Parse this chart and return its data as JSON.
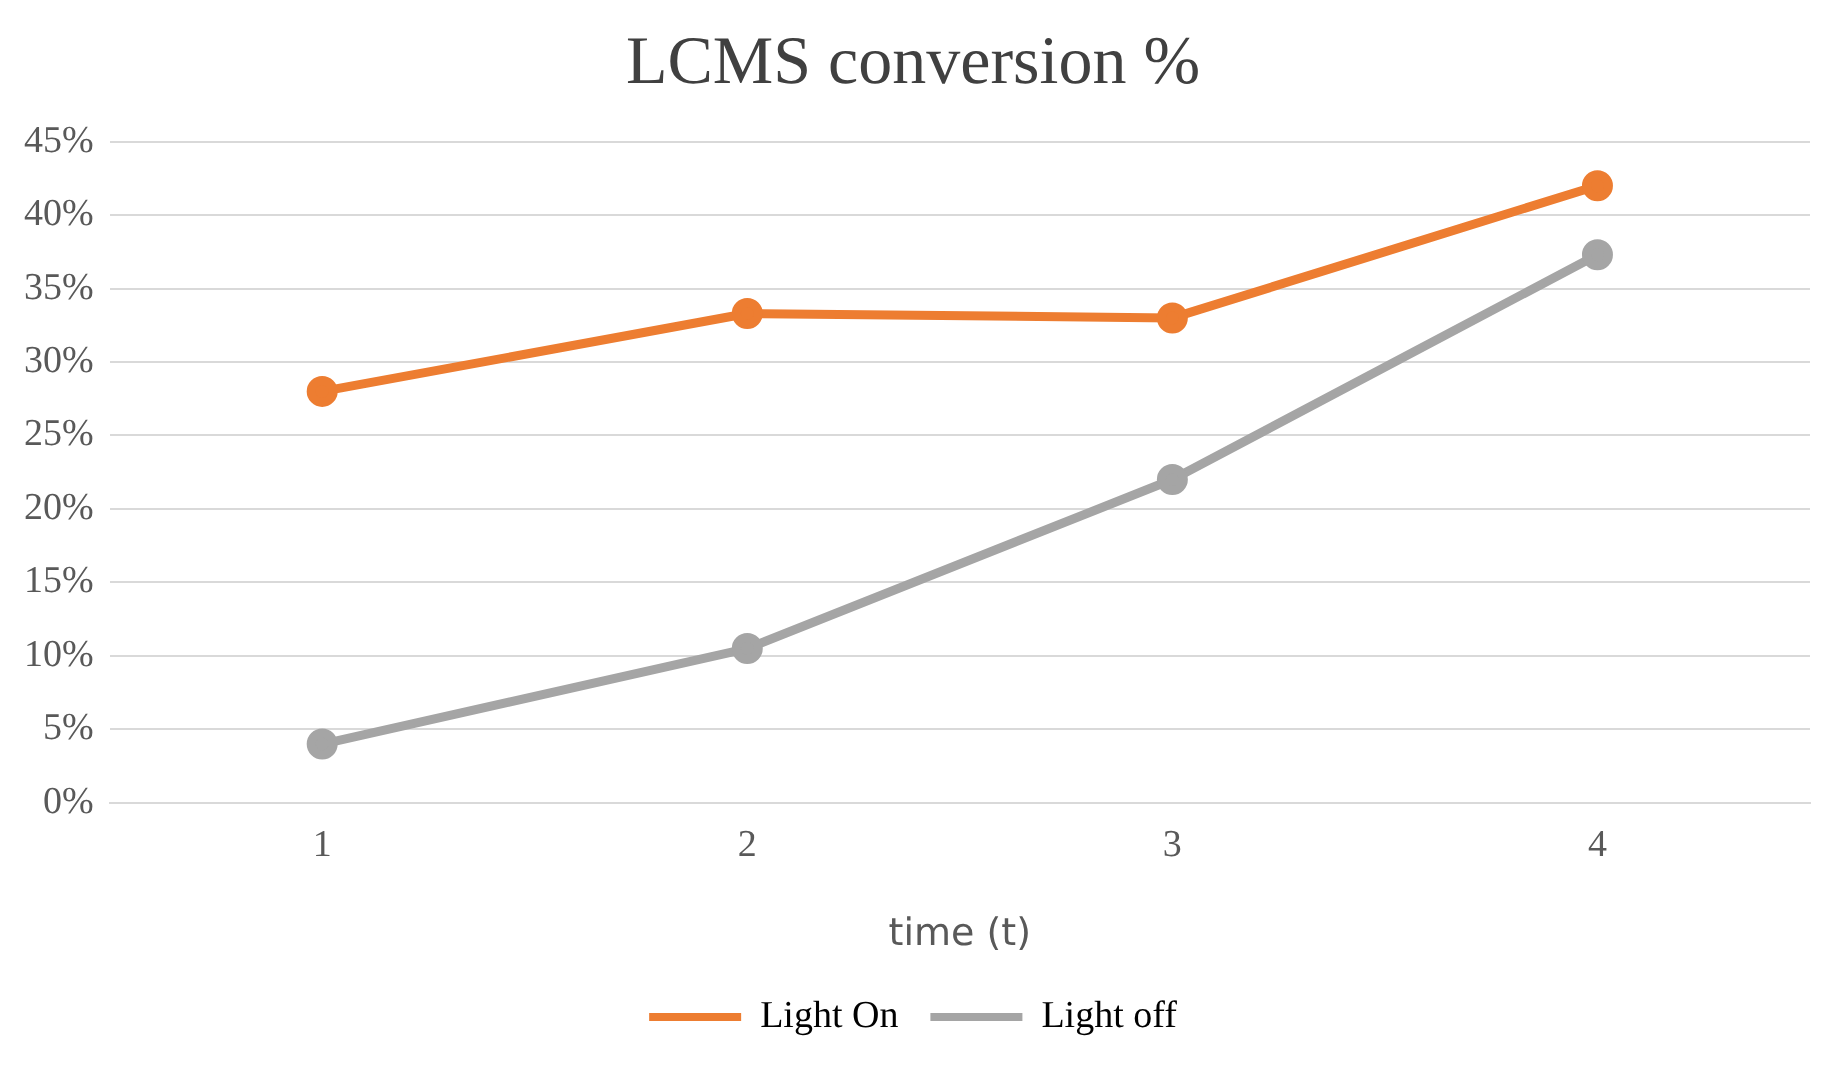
{
  "chart_data": {
    "type": "line",
    "title": "LCMS conversion %",
    "xlabel": "time (t)",
    "categories": [
      "1",
      "2",
      "3",
      "4"
    ],
    "series": [
      {
        "name": "Light On",
        "color": "#ed7d31",
        "values": [
          28,
          33.3,
          33,
          42
        ]
      },
      {
        "name": "Light off",
        "color": "#a5a5a5",
        "values": [
          4,
          10.5,
          22,
          37.3
        ]
      }
    ],
    "ylim": [
      0,
      45
    ],
    "yticks": [
      {
        "value": 0,
        "label": "0%"
      },
      {
        "value": 5,
        "label": "5%"
      },
      {
        "value": 10,
        "label": "10%"
      },
      {
        "value": 15,
        "label": "15%"
      },
      {
        "value": 20,
        "label": "20%"
      },
      {
        "value": 25,
        "label": "25%"
      },
      {
        "value": 30,
        "label": "30%"
      },
      {
        "value": 35,
        "label": "35%"
      },
      {
        "value": 40,
        "label": "40%"
      },
      {
        "value": 45,
        "label": "45%"
      }
    ],
    "grid": "y",
    "legend": "bottom",
    "marker": "circle",
    "line_style": "solid"
  }
}
